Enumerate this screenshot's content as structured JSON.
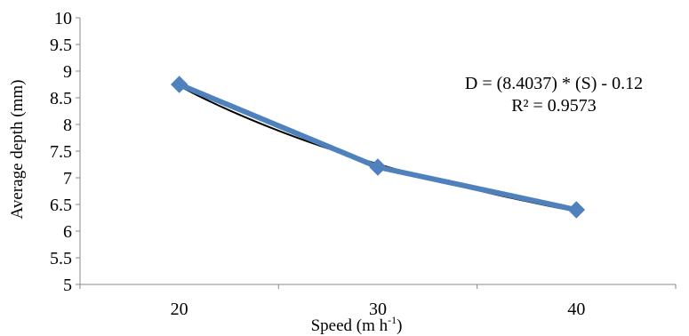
{
  "chart_data": {
    "type": "line",
    "x": [
      20,
      30,
      40
    ],
    "categories": [
      "20",
      "30",
      "40"
    ],
    "series": [
      {
        "values": [
          8.75,
          7.2,
          6.4
        ],
        "color": "#4F81BD",
        "marker": "diamond"
      }
    ],
    "trendline": {
      "type": "power",
      "color": "#000000",
      "equation": "D = (8.4037) * (S) - 0.12",
      "r_squared": "R² = 0.9573"
    },
    "xlabel_main": "Speed (m h",
    "xlabel_sup": "-1",
    "xlabel_end": ")",
    "ylabel": "Average depth (mm)",
    "ylim": [
      5,
      10
    ],
    "yticks": [
      "5",
      "5.5",
      "6",
      "6.5",
      "7",
      "7.5",
      "8",
      "8.5",
      "9",
      "9.5",
      "10"
    ],
    "grid": false,
    "legend": "none"
  }
}
